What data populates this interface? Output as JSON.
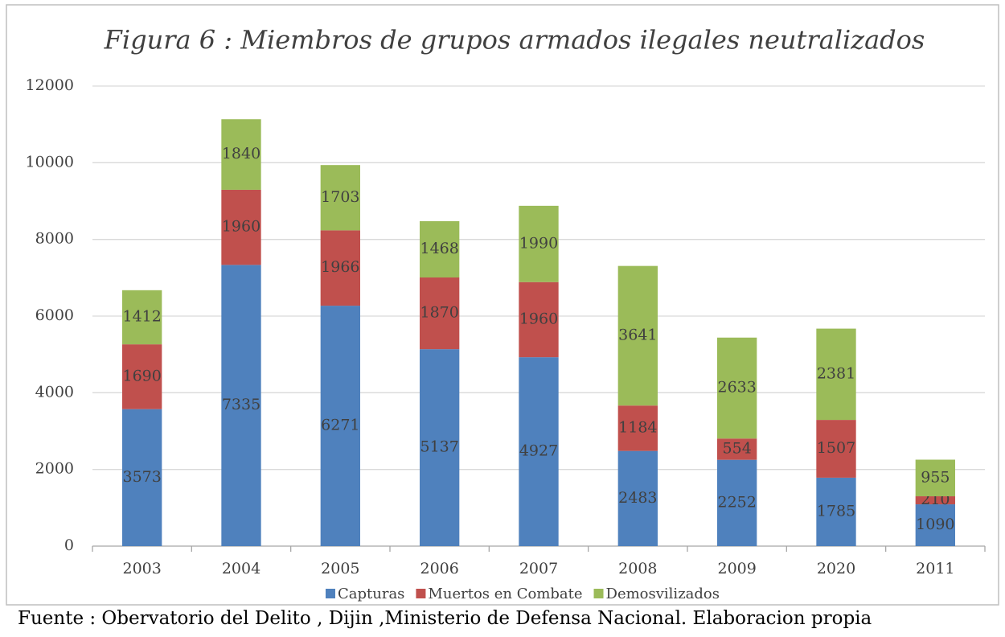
{
  "chart_data": {
    "type": "stacked_bar",
    "title": "Figura 6 : Miembros de grupos armados ilegales neutralizados",
    "categories": [
      "2003",
      "2004",
      "2005",
      "2006",
      "2007",
      "2008",
      "2009",
      "2020",
      "2011"
    ],
    "series": [
      {
        "name": "Capturas",
        "color": "#4f81bd",
        "values": [
          3573,
          7335,
          6271,
          5137,
          4927,
          2483,
          2252,
          1785,
          1090
        ]
      },
      {
        "name": "Muertos en Combate",
        "color": "#c0504d",
        "values": [
          1690,
          1960,
          1966,
          1870,
          1960,
          1184,
          554,
          1507,
          210
        ]
      },
      {
        "name": "Demosvilizados",
        "color": "#9bbb59",
        "values": [
          1412,
          1840,
          1703,
          1468,
          1990,
          3641,
          2633,
          2381,
          955
        ]
      }
    ],
    "ylim": [
      0,
      12000
    ],
    "yticks": [
      0,
      2000,
      4000,
      6000,
      8000,
      10000,
      12000
    ],
    "grid": true,
    "legend": "bottom",
    "note": "Fuente : Obervatorio del Delito , Dijin ,Ministerio de Defensa Nacional. Elaboracion propia"
  }
}
